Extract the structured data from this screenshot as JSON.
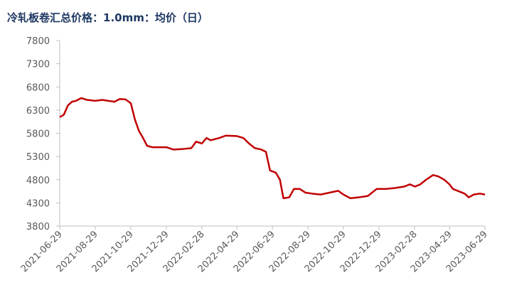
{
  "chart_data": {
    "type": "line",
    "title": "冷轧板卷汇总价格：1.0mm：均价（日）",
    "x": [
      "2021-06-29",
      "2021-07-06",
      "2021-07-13",
      "2021-07-20",
      "2021-07-27",
      "2021-08-05",
      "2021-08-15",
      "2021-08-29",
      "2021-09-10",
      "2021-09-20",
      "2021-10-01",
      "2021-10-10",
      "2021-10-20",
      "2021-10-29",
      "2021-11-05",
      "2021-11-12",
      "2021-11-19",
      "2021-11-26",
      "2021-12-05",
      "2021-12-15",
      "2021-12-29",
      "2022-01-10",
      "2022-01-25",
      "2022-02-10",
      "2022-02-18",
      "2022-02-28",
      "2022-03-08",
      "2022-03-15",
      "2022-03-30",
      "2022-04-10",
      "2022-04-29",
      "2022-05-10",
      "2022-05-20",
      "2022-05-30",
      "2022-06-10",
      "2022-06-18",
      "2022-06-25",
      "2022-07-05",
      "2022-07-12",
      "2022-07-18",
      "2022-07-28",
      "2022-08-05",
      "2022-08-15",
      "2022-08-25",
      "2022-09-05",
      "2022-09-20",
      "2022-10-05",
      "2022-10-20",
      "2022-10-29",
      "2022-11-10",
      "2022-11-25",
      "2022-12-10",
      "2022-12-25",
      "2023-01-10",
      "2023-01-25",
      "2023-02-10",
      "2023-02-20",
      "2023-03-01",
      "2023-03-10",
      "2023-03-20",
      "2023-04-01",
      "2023-04-10",
      "2023-04-20",
      "2023-04-29",
      "2023-05-05",
      "2023-05-15",
      "2023-05-25",
      "2023-06-01",
      "2023-06-10",
      "2023-06-20",
      "2023-06-29"
    ],
    "series": [
      {
        "name": "均价",
        "color": "#c00000",
        "values": [
          6150,
          6200,
          6400,
          6480,
          6500,
          6560,
          6520,
          6500,
          6520,
          6500,
          6480,
          6540,
          6530,
          6450,
          6100,
          5850,
          5700,
          5530,
          5500,
          5500,
          5500,
          5450,
          5460,
          5480,
          5620,
          5580,
          5700,
          5650,
          5700,
          5750,
          5740,
          5700,
          5580,
          5480,
          5450,
          5400,
          5000,
          4950,
          4800,
          4400,
          4420,
          4600,
          4600,
          4520,
          4500,
          4480,
          4520,
          4560,
          4480,
          4400,
          4420,
          4450,
          4600,
          4600,
          4620,
          4650,
          4700,
          4650,
          4700,
          4800,
          4900,
          4870,
          4800,
          4700,
          4600,
          4550,
          4500,
          4420,
          4480,
          4500,
          4480
        ]
      }
    ],
    "xlim": [
      "2021-06-29",
      "2023-06-29"
    ],
    "xticks": [
      "2021-06-29",
      "2021-08-29",
      "2021-10-29",
      "2021-12-29",
      "2022-02-28",
      "2022-04-29",
      "2022-06-29",
      "2022-08-29",
      "2022-10-29",
      "2022-12-29",
      "2023-02-28",
      "2023-04-29",
      "2023-06-29"
    ],
    "ylim": [
      3800,
      7800
    ],
    "yticks": [
      3800,
      4300,
      4800,
      5300,
      5800,
      6300,
      6800,
      7300,
      7800
    ],
    "grid": false
  }
}
